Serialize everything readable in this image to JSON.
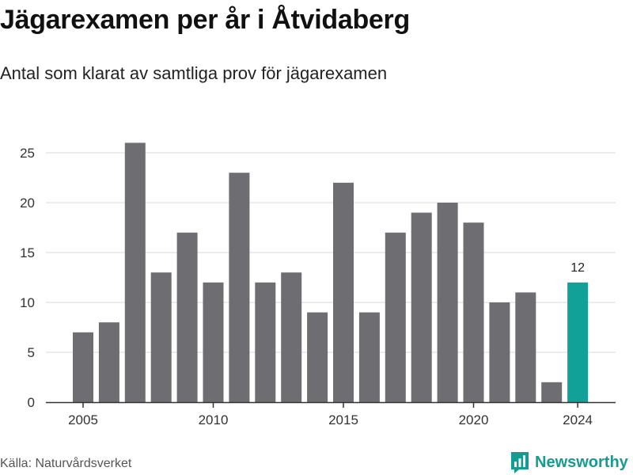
{
  "header": {
    "title": "Jägarexamen per år i Åtvidaberg",
    "subtitle": "Antal som klarat av samtliga prov för jägarexamen"
  },
  "footer": {
    "source": "Källa: Naturvårdsverket",
    "brand": "Newsworthy"
  },
  "colors": {
    "bar": "#6e6d72",
    "highlight": "#11a198",
    "grid": "#d9d9d9",
    "axis": "#333333",
    "brand": "#159b91"
  },
  "chart_data": {
    "type": "bar",
    "x": [
      2005,
      2006,
      2007,
      2008,
      2009,
      2010,
      2011,
      2012,
      2013,
      2014,
      2015,
      2016,
      2017,
      2018,
      2019,
      2020,
      2021,
      2022,
      2023,
      2024
    ],
    "values": [
      7,
      8,
      26,
      13,
      17,
      12,
      23,
      12,
      13,
      9,
      22,
      9,
      17,
      19,
      20,
      18,
      10,
      11,
      2,
      12
    ],
    "x_ticks": [
      "2005",
      "2010",
      "2015",
      "2020",
      "2024"
    ],
    "y_ticks": [
      0,
      5,
      10,
      15,
      20,
      25
    ],
    "ylim": [
      0,
      27
    ],
    "highlight": {
      "x": 2024,
      "label": "12"
    },
    "grid": true
  }
}
